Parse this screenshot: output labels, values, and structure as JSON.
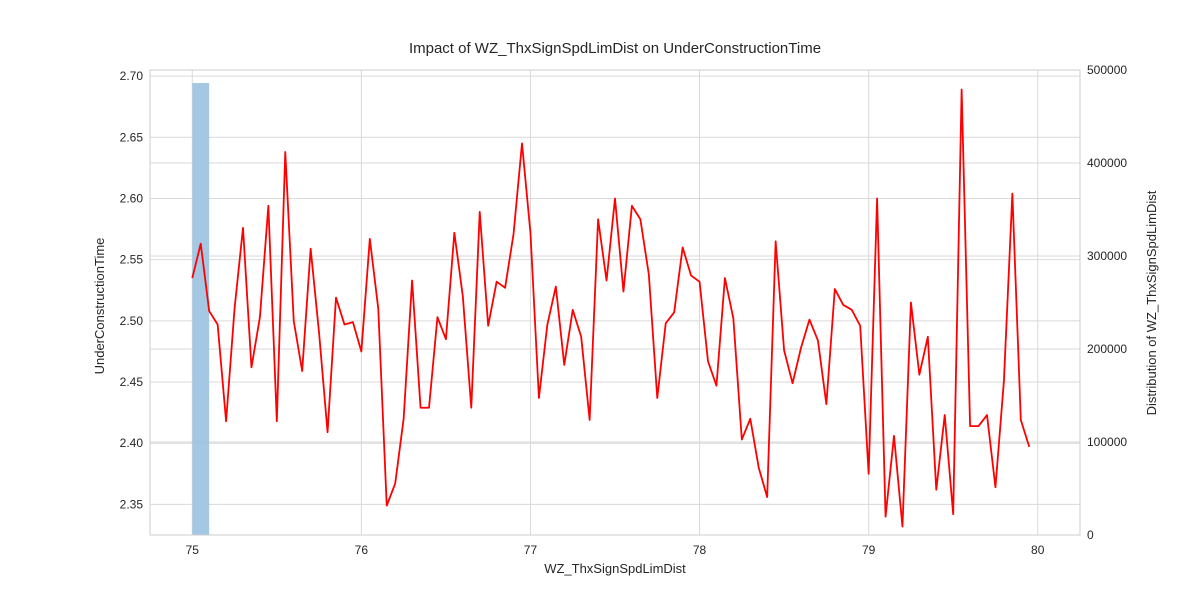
{
  "chart_data": {
    "type": "line",
    "title": "Impact of WZ_ThxSignSpdLimDist on UnderConstructionTime",
    "xlabel": "WZ_ThxSignSpdLimDist",
    "ylabel": "UnderConstructionTime",
    "y2label": "Distribution of WZ_ThxSignSpdLimDist",
    "xlim": [
      74.75,
      80.25
    ],
    "ylim": [
      2.325,
      2.705
    ],
    "y2lim": [
      0,
      500000
    ],
    "x_ticks": [
      "75",
      "76",
      "77",
      "78",
      "79",
      "80"
    ],
    "y_ticks": [
      "2.35",
      "2.40",
      "2.45",
      "2.50",
      "2.55",
      "2.60",
      "2.65",
      "2.70"
    ],
    "y2_ticks": [
      "0",
      "100000",
      "200000",
      "300000",
      "400000",
      "500000"
    ],
    "grid": true,
    "line_color": "#ff0000",
    "bar_color": "#9fc5e3",
    "histogram": {
      "bins": [
        [
          75.0,
          75.1
        ]
      ],
      "counts": [
        486000
      ]
    },
    "series": [
      {
        "x": [
          75.0,
          75.05,
          75.1,
          75.15,
          75.2,
          75.25,
          75.3,
          75.35,
          75.4,
          75.45,
          75.5,
          75.55,
          75.6,
          75.65,
          75.7,
          75.75,
          75.8,
          75.85,
          75.9,
          75.95,
          76.0,
          76.05,
          76.1,
          76.15,
          76.2,
          76.25,
          76.3,
          76.35,
          76.4,
          76.45,
          76.5,
          76.55,
          76.6,
          76.65,
          76.7,
          76.75,
          76.8,
          76.85,
          76.9,
          76.95,
          77.0,
          77.05,
          77.1,
          77.15,
          77.2,
          77.25,
          77.3,
          77.35,
          77.4,
          77.45,
          77.5,
          77.55,
          77.6,
          77.65,
          77.7,
          77.75,
          77.8,
          77.85,
          77.9,
          77.95,
          78.0,
          78.05,
          78.1,
          78.15,
          78.2,
          78.25,
          78.3,
          78.35,
          78.4,
          78.45,
          78.5,
          78.55,
          78.6,
          78.65,
          78.7,
          78.75,
          78.8,
          78.85,
          78.9,
          78.95,
          79.0,
          79.05,
          79.1,
          79.15,
          79.2,
          79.25,
          79.3,
          79.35,
          79.4,
          79.45,
          79.5,
          79.55,
          79.6,
          79.65,
          79.7,
          79.75,
          79.8,
          79.85,
          79.9,
          79.95
        ],
        "values": [
          2.535,
          2.563,
          2.508,
          2.497,
          2.418,
          2.51,
          2.576,
          2.462,
          2.503,
          2.594,
          2.418,
          2.638,
          2.5,
          2.459,
          2.559,
          2.49,
          2.409,
          2.519,
          2.497,
          2.499,
          2.475,
          2.567,
          2.51,
          2.349,
          2.367,
          2.42,
          2.533,
          2.429,
          2.429,
          2.503,
          2.485,
          2.572,
          2.52,
          2.429,
          2.589,
          2.496,
          2.532,
          2.527,
          2.571,
          2.645,
          2.572,
          2.437,
          2.497,
          2.528,
          2.464,
          2.509,
          2.487,
          2.419,
          2.583,
          2.533,
          2.6,
          2.524,
          2.594,
          2.583,
          2.538,
          2.437,
          2.498,
          2.507,
          2.56,
          2.537,
          2.532,
          2.467,
          2.447,
          2.535,
          2.502,
          2.403,
          2.42,
          2.38,
          2.356,
          2.565,
          2.476,
          2.449,
          2.478,
          2.501,
          2.484,
          2.432,
          2.526,
          2.513,
          2.509,
          2.496,
          2.375,
          2.6,
          2.34,
          2.406,
          2.332,
          2.515,
          2.456,
          2.487,
          2.362,
          2.423,
          2.342,
          2.689,
          2.414,
          2.414,
          2.423,
          2.364,
          2.451,
          2.604,
          2.419,
          2.397
        ]
      }
    ]
  }
}
